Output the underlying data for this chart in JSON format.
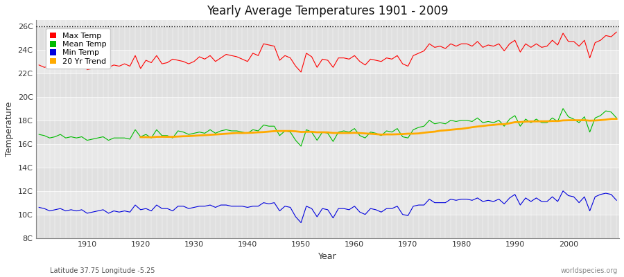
{
  "title": "Yearly Average Temperatures 1901 - 2009",
  "xlabel": "Year",
  "ylabel": "Temperature",
  "lat_lon_text": "Latitude 37.75 Longitude -5.25",
  "watermark": "worldspecies.org",
  "year_start": 1901,
  "year_end": 2009,
  "ylim": [
    8,
    26.5
  ],
  "yticks": [
    8,
    10,
    12,
    14,
    16,
    18,
    20,
    22,
    24,
    26
  ],
  "ytick_labels": [
    "8C",
    "10C",
    "12C",
    "14C",
    "16C",
    "18C",
    "20C",
    "22C",
    "24C",
    "26C"
  ],
  "xticks": [
    1910,
    1920,
    1930,
    1940,
    1950,
    1960,
    1970,
    1980,
    1990,
    2000
  ],
  "max_temp_color": "#ff0000",
  "mean_temp_color": "#00bb00",
  "min_temp_color": "#0000dd",
  "trend_color": "#ffaa00",
  "bg_color": "#e8e8e8",
  "fig_bg_color": "#ffffff",
  "grid_color": "#ffffff",
  "band_colors": [
    "#e0e0e0",
    "#e8e8e8"
  ],
  "legend_labels": [
    "Max Temp",
    "Mean Temp",
    "Min Temp",
    "20 Yr Trend"
  ],
  "dotted_line_y": 26,
  "max_temps": [
    22.7,
    22.5,
    22.6,
    22.7,
    22.5,
    22.8,
    22.6,
    22.9,
    23.1,
    22.3,
    22.4,
    22.5,
    22.6,
    22.5,
    22.7,
    22.6,
    22.8,
    22.6,
    23.5,
    22.4,
    23.1,
    22.9,
    23.5,
    22.8,
    22.9,
    23.2,
    23.1,
    23.0,
    22.8,
    23.0,
    23.4,
    23.2,
    23.5,
    23.0,
    23.3,
    23.6,
    23.5,
    23.4,
    23.2,
    23.0,
    23.7,
    23.5,
    24.5,
    24.4,
    24.3,
    23.1,
    23.5,
    23.3,
    22.6,
    22.1,
    23.7,
    23.4,
    22.5,
    23.2,
    23.1,
    22.5,
    23.3,
    23.3,
    23.2,
    23.5,
    23.0,
    22.7,
    23.2,
    23.1,
    23.0,
    23.3,
    23.2,
    23.5,
    22.8,
    22.6,
    23.5,
    23.7,
    23.9,
    24.5,
    24.2,
    24.3,
    24.1,
    24.5,
    24.3,
    24.5,
    24.5,
    24.3,
    24.7,
    24.2,
    24.4,
    24.3,
    24.5,
    23.9,
    24.5,
    24.8,
    23.8,
    24.5,
    24.2,
    24.5,
    24.2,
    24.3,
    24.8,
    24.4,
    25.4,
    24.7,
    24.7,
    24.3,
    24.8,
    23.3,
    24.6,
    24.8,
    25.2,
    25.1,
    25.5
  ],
  "mean_temps": [
    16.8,
    16.7,
    16.5,
    16.6,
    16.8,
    16.5,
    16.6,
    16.5,
    16.6,
    16.3,
    16.4,
    16.5,
    16.6,
    16.3,
    16.5,
    16.5,
    16.5,
    16.4,
    17.2,
    16.6,
    16.8,
    16.5,
    17.2,
    16.7,
    16.7,
    16.5,
    17.1,
    17.0,
    16.8,
    16.9,
    17.0,
    16.9,
    17.2,
    16.9,
    17.1,
    17.2,
    17.1,
    17.1,
    17.0,
    16.9,
    17.2,
    17.1,
    17.6,
    17.5,
    17.5,
    16.7,
    17.1,
    17.0,
    16.3,
    15.8,
    17.2,
    17.0,
    16.3,
    17.0,
    16.9,
    16.2,
    17.0,
    17.1,
    17.0,
    17.3,
    16.7,
    16.5,
    17.0,
    16.9,
    16.7,
    17.1,
    17.0,
    17.3,
    16.6,
    16.5,
    17.2,
    17.4,
    17.5,
    18.0,
    17.7,
    17.8,
    17.7,
    18.0,
    17.9,
    18.0,
    18.0,
    17.9,
    18.2,
    17.8,
    17.9,
    17.8,
    18.0,
    17.5,
    18.1,
    18.4,
    17.5,
    18.1,
    17.8,
    18.1,
    17.8,
    17.8,
    18.2,
    17.9,
    19.0,
    18.3,
    18.1,
    17.8,
    18.3,
    17.0,
    18.2,
    18.4,
    18.8,
    18.7,
    18.2
  ],
  "min_temps": [
    10.6,
    10.5,
    10.3,
    10.4,
    10.5,
    10.3,
    10.4,
    10.3,
    10.4,
    10.1,
    10.2,
    10.3,
    10.4,
    10.1,
    10.3,
    10.2,
    10.3,
    10.2,
    10.8,
    10.4,
    10.5,
    10.3,
    10.8,
    10.5,
    10.5,
    10.3,
    10.7,
    10.7,
    10.5,
    10.6,
    10.7,
    10.7,
    10.8,
    10.6,
    10.8,
    10.8,
    10.7,
    10.7,
    10.7,
    10.6,
    10.7,
    10.7,
    11.0,
    10.9,
    11.0,
    10.3,
    10.7,
    10.6,
    9.8,
    9.3,
    10.7,
    10.5,
    9.8,
    10.5,
    10.4,
    9.7,
    10.5,
    10.5,
    10.4,
    10.7,
    10.2,
    10.0,
    10.5,
    10.4,
    10.2,
    10.5,
    10.5,
    10.7,
    10.0,
    9.9,
    10.7,
    10.8,
    10.8,
    11.3,
    11.0,
    11.0,
    11.0,
    11.3,
    11.2,
    11.3,
    11.3,
    11.2,
    11.4,
    11.1,
    11.2,
    11.1,
    11.3,
    10.9,
    11.4,
    11.7,
    10.8,
    11.4,
    11.1,
    11.4,
    11.1,
    11.1,
    11.5,
    11.1,
    12.0,
    11.6,
    11.5,
    11.0,
    11.5,
    10.3,
    11.5,
    11.7,
    11.8,
    11.7,
    11.2
  ]
}
